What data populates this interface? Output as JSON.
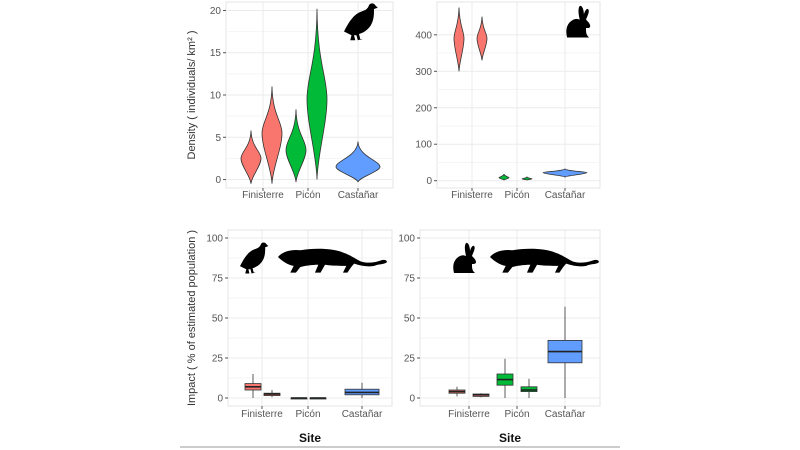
{
  "chart_data": [
    {
      "type": "violin",
      "panel": "top-left",
      "icon": "grouse-icon",
      "ylabel": "Density ( individuals/ km² )",
      "ylim": [
        -1,
        21
      ],
      "yticks": [
        0,
        5,
        10,
        15,
        20
      ],
      "categories": [
        "Finisterre",
        "Picón",
        "Castañar"
      ],
      "violins": [
        {
          "site": "Finisterre",
          "sub": 0,
          "min": -0.5,
          "max": 5.8,
          "mode": 2.5,
          "color": "#F8766D"
        },
        {
          "site": "Finisterre",
          "sub": 1,
          "min": -0.5,
          "max": 11,
          "mode": 5.5,
          "color": "#F8766D"
        },
        {
          "site": "Picón",
          "sub": 0,
          "min": -0.3,
          "max": 8.3,
          "mode": 3.5,
          "color": "#00BA38"
        },
        {
          "site": "Picón",
          "sub": 1,
          "min": 0,
          "max": 20.2,
          "mode": 9.5,
          "color": "#00BA38"
        },
        {
          "site": "Castañar",
          "sub": -1,
          "min": -0.3,
          "max": 4.5,
          "mode": 1.5,
          "color": "#619CFF"
        }
      ]
    },
    {
      "type": "violin",
      "panel": "top-right",
      "icon": "rabbit-icon",
      "ylabel": "",
      "ylim": [
        -20,
        490
      ],
      "yticks": [
        0,
        100,
        200,
        300,
        400
      ],
      "categories": [
        "Finisterre",
        "Picón",
        "Castañar"
      ],
      "violins": [
        {
          "site": "Finisterre",
          "sub": 0,
          "min": 300,
          "max": 475,
          "mode": 390,
          "color": "#F8766D"
        },
        {
          "site": "Finisterre",
          "sub": 1,
          "min": 330,
          "max": 450,
          "mode": 390,
          "color": "#F8766D"
        },
        {
          "site": "Picón",
          "sub": 0,
          "min": 2,
          "max": 18,
          "mode": 8,
          "color": "#00BA38"
        },
        {
          "site": "Picón",
          "sub": 1,
          "min": 2,
          "max": 10,
          "mode": 5,
          "color": "#00BA38"
        },
        {
          "site": "Castañar",
          "sub": -1,
          "min": 10,
          "max": 33,
          "mode": 22,
          "color": "#619CFF"
        }
      ]
    },
    {
      "type": "box",
      "panel": "bottom-left",
      "icons": [
        "grouse-icon",
        "genet-icon"
      ],
      "ylabel": "Impact ( % of estimated population )",
      "xlabel": "Site",
      "ylim": [
        -5,
        105
      ],
      "yticks": [
        0,
        25,
        50,
        75,
        100
      ],
      "categories": [
        "Finisterre",
        "Picón",
        "Castañar"
      ],
      "boxes": [
        {
          "site": "Finisterre",
          "sub": 0,
          "min": 0,
          "q1": 5,
          "median": 7,
          "q3": 9,
          "max": 15,
          "color": "#F8766D"
        },
        {
          "site": "Finisterre",
          "sub": 1,
          "min": 0.5,
          "q1": 1.5,
          "median": 2.5,
          "q3": 3,
          "max": 5,
          "color": "#F8766D"
        },
        {
          "site": "Picón",
          "sub": 0,
          "min": 0,
          "q1": 0,
          "median": 0,
          "q3": 0,
          "max": 0,
          "color": "#00BA38"
        },
        {
          "site": "Picón",
          "sub": 1,
          "min": 0,
          "q1": 0,
          "median": 0,
          "q3": 0,
          "max": 0,
          "color": "#00BA38"
        },
        {
          "site": "Castañar",
          "sub": -1,
          "min": 0,
          "q1": 2,
          "median": 3.5,
          "q3": 5.5,
          "max": 9.5,
          "color": "#619CFF"
        }
      ]
    },
    {
      "type": "box",
      "panel": "bottom-right",
      "icons": [
        "rabbit-icon",
        "genet-icon"
      ],
      "ylabel": "",
      "xlabel": "Site",
      "ylim": [
        -5,
        105
      ],
      "yticks": [
        0,
        25,
        50,
        75,
        100
      ],
      "categories": [
        "Finisterre",
        "Picón",
        "Castañar"
      ],
      "boxes": [
        {
          "site": "Finisterre",
          "sub": 0,
          "min": 1,
          "q1": 3,
          "median": 4,
          "q3": 5,
          "max": 7,
          "color": "#F8766D"
        },
        {
          "site": "Finisterre",
          "sub": 1,
          "min": 0.5,
          "q1": 1,
          "median": 2,
          "q3": 2.5,
          "max": 3,
          "color": "#F8766D"
        },
        {
          "site": "Picón",
          "sub": 0,
          "min": 0,
          "q1": 8,
          "median": 11.5,
          "q3": 15,
          "max": 24.5,
          "color": "#00BA38"
        },
        {
          "site": "Picón",
          "sub": 1,
          "min": 0,
          "q1": 4,
          "median": 5,
          "q3": 7,
          "max": 12,
          "color": "#00BA38"
        },
        {
          "site": "Castañar",
          "sub": -1,
          "min": 0,
          "q1": 22,
          "median": 29,
          "q3": 36,
          "max": 57,
          "color": "#619CFF"
        }
      ]
    }
  ]
}
